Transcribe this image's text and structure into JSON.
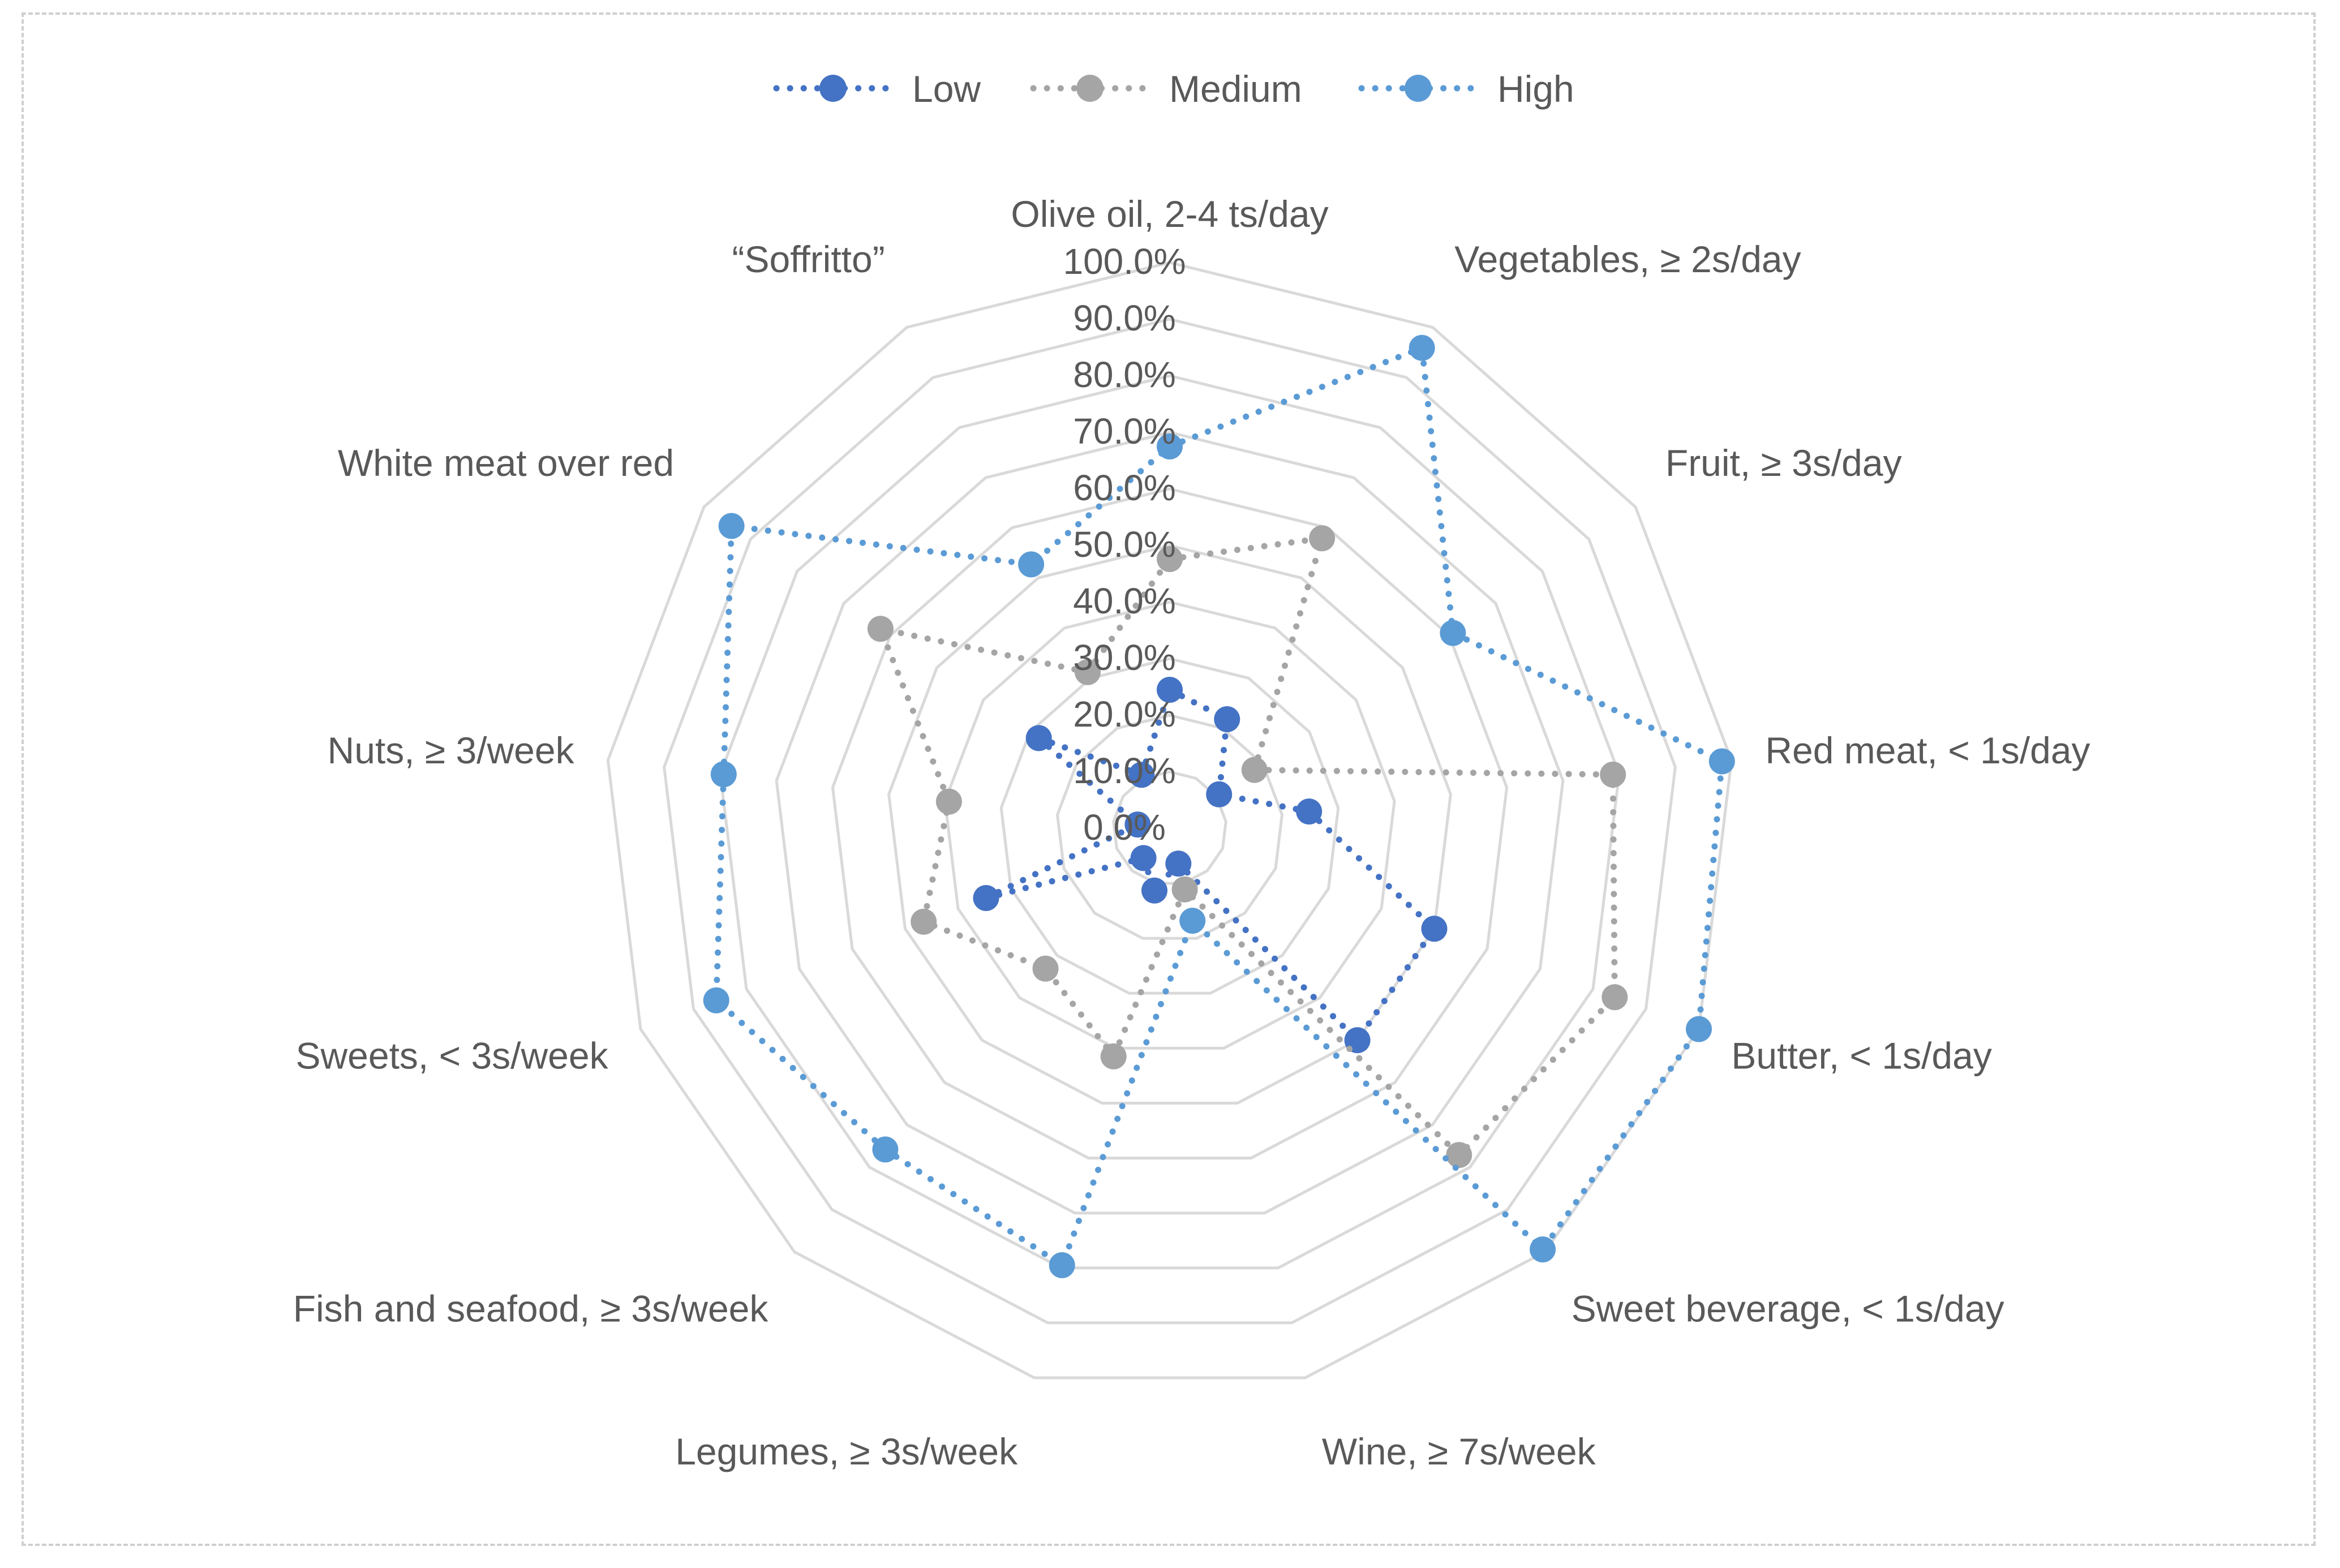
{
  "chart_data": {
    "type": "radar",
    "title": "",
    "categories": [
      "Olive oil, 2-4 ts/day",
      "Vegetables, ≥ 2s/day",
      "Fruit, ≥ 3s/day",
      "Red meat, < 1s/day",
      "Butter, < 1s/day",
      "Sweet beverage, < 1s/day",
      "Wine, ≥ 7s/week",
      "Legumes, ≥ 3s/week",
      "Fish and seafood, ≥ 3s/week",
      "Sweets, < 3s/week",
      "Nuts, ≥ 3/week",
      "White meat over red",
      "“Soffritto”"
    ],
    "rlim": [
      0,
      100
    ],
    "ticks": [
      "0.0%",
      "10.0%",
      "20.0%",
      "30.0%",
      "40.0%",
      "50.0%",
      "60.0%",
      "70.0%",
      "80.0%",
      "90.0%",
      "100.0%"
    ],
    "series": [
      {
        "name": "Low",
        "color": "#4472c4",
        "values": [
          24.5,
          21.8,
          10.6,
          24.8,
          50.0,
          50.0,
          6.4,
          11.3,
          7.0,
          34.7,
          5.7,
          28.1,
          10.7
        ]
      },
      {
        "name": "Medium",
        "color": "#a5a5a5",
        "values": [
          47.6,
          57.9,
          18.2,
          78.9,
          84.1,
          77.1,
          11.1,
          41.5,
          33.1,
          46.5,
          39.3,
          62.1,
          31.2
        ]
      },
      {
        "name": "High",
        "color": "#5b9bd5",
        "values": [
          67.5,
          95.9,
          60.8,
          98.3,
          100.0,
          99.4,
          16.8,
          79.5,
          75.8,
          85.7,
          79.4,
          94.1,
          52.7
        ]
      }
    ],
    "legend_position": "top",
    "grid": true
  }
}
